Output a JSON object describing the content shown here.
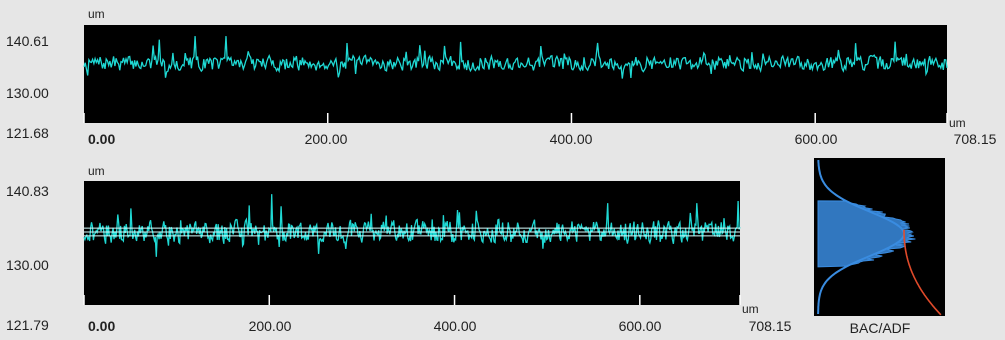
{
  "chart_data": [
    {
      "type": "line",
      "title": "",
      "xlabel": "um",
      "ylabel": "um",
      "xlim": [
        0,
        708.15
      ],
      "ylim": [
        121.68,
        140.61
      ],
      "y_tick_labels": [
        "140.61",
        "130.00",
        "121.68"
      ],
      "x_tick_labels": [
        "0.00",
        "200.00",
        "400.00",
        "600.00",
        "708.15"
      ],
      "line_color": "#1fd9d4",
      "background": "#000000",
      "mean_level": 133.2,
      "noise_amplitude": 2.5,
      "seed": 7
    },
    {
      "type": "line",
      "title": "",
      "xlabel": "um",
      "ylabel": "um",
      "xlim": [
        0,
        708.15
      ],
      "ylim": [
        121.79,
        140.83
      ],
      "y_tick_labels": [
        "140.83",
        "130.00",
        "121.79"
      ],
      "x_tick_labels": [
        "0.00",
        "200.00",
        "400.00",
        "600.00",
        "708.15"
      ],
      "line_color": "#1fd9d4",
      "background": "#000000",
      "mean_level": 133.0,
      "noise_amplitude": 3.0,
      "reference_lines": [
        132.4,
        133.0,
        133.6
      ],
      "seed": 21
    },
    {
      "type": "area",
      "title": "",
      "label": "BAC/ADF",
      "series_colors": {
        "adf": "#3a8ce0",
        "bac": "#e04a2a"
      },
      "background": "#000000",
      "peak_level": 133.0
    }
  ]
}
